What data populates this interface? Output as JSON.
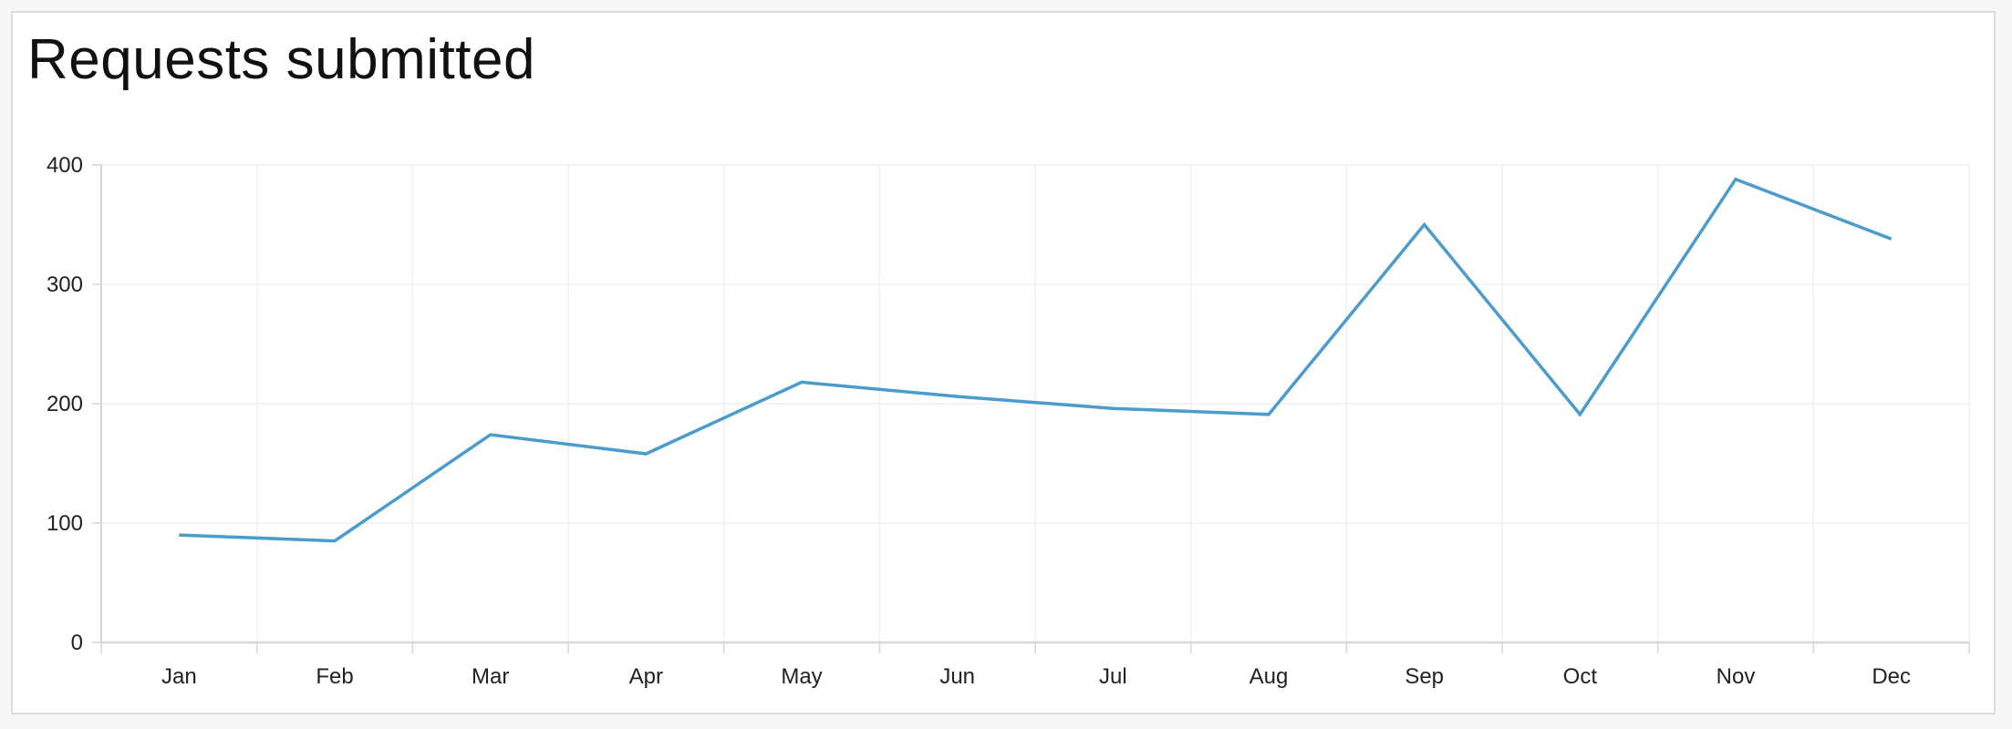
{
  "chart_data": {
    "type": "line",
    "title": "Requests submitted",
    "xlabel": "",
    "ylabel": "",
    "categories": [
      "Jan",
      "Feb",
      "Mar",
      "Apr",
      "May",
      "Jun",
      "Jul",
      "Aug",
      "Sep",
      "Oct",
      "Nov",
      "Dec"
    ],
    "series": [
      {
        "values": [
          90,
          85,
          174,
          158,
          218,
          206,
          196,
          191,
          350,
          191,
          388,
          338
        ]
      }
    ],
    "ylim": [
      0,
      400
    ],
    "yticks": [
      0,
      100,
      200,
      300,
      400
    ],
    "grid": true,
    "legend": "none",
    "colors": {
      "line": "#4a9ccc",
      "grid": "#f0f0f0",
      "axis": "#d6d6d6"
    }
  }
}
